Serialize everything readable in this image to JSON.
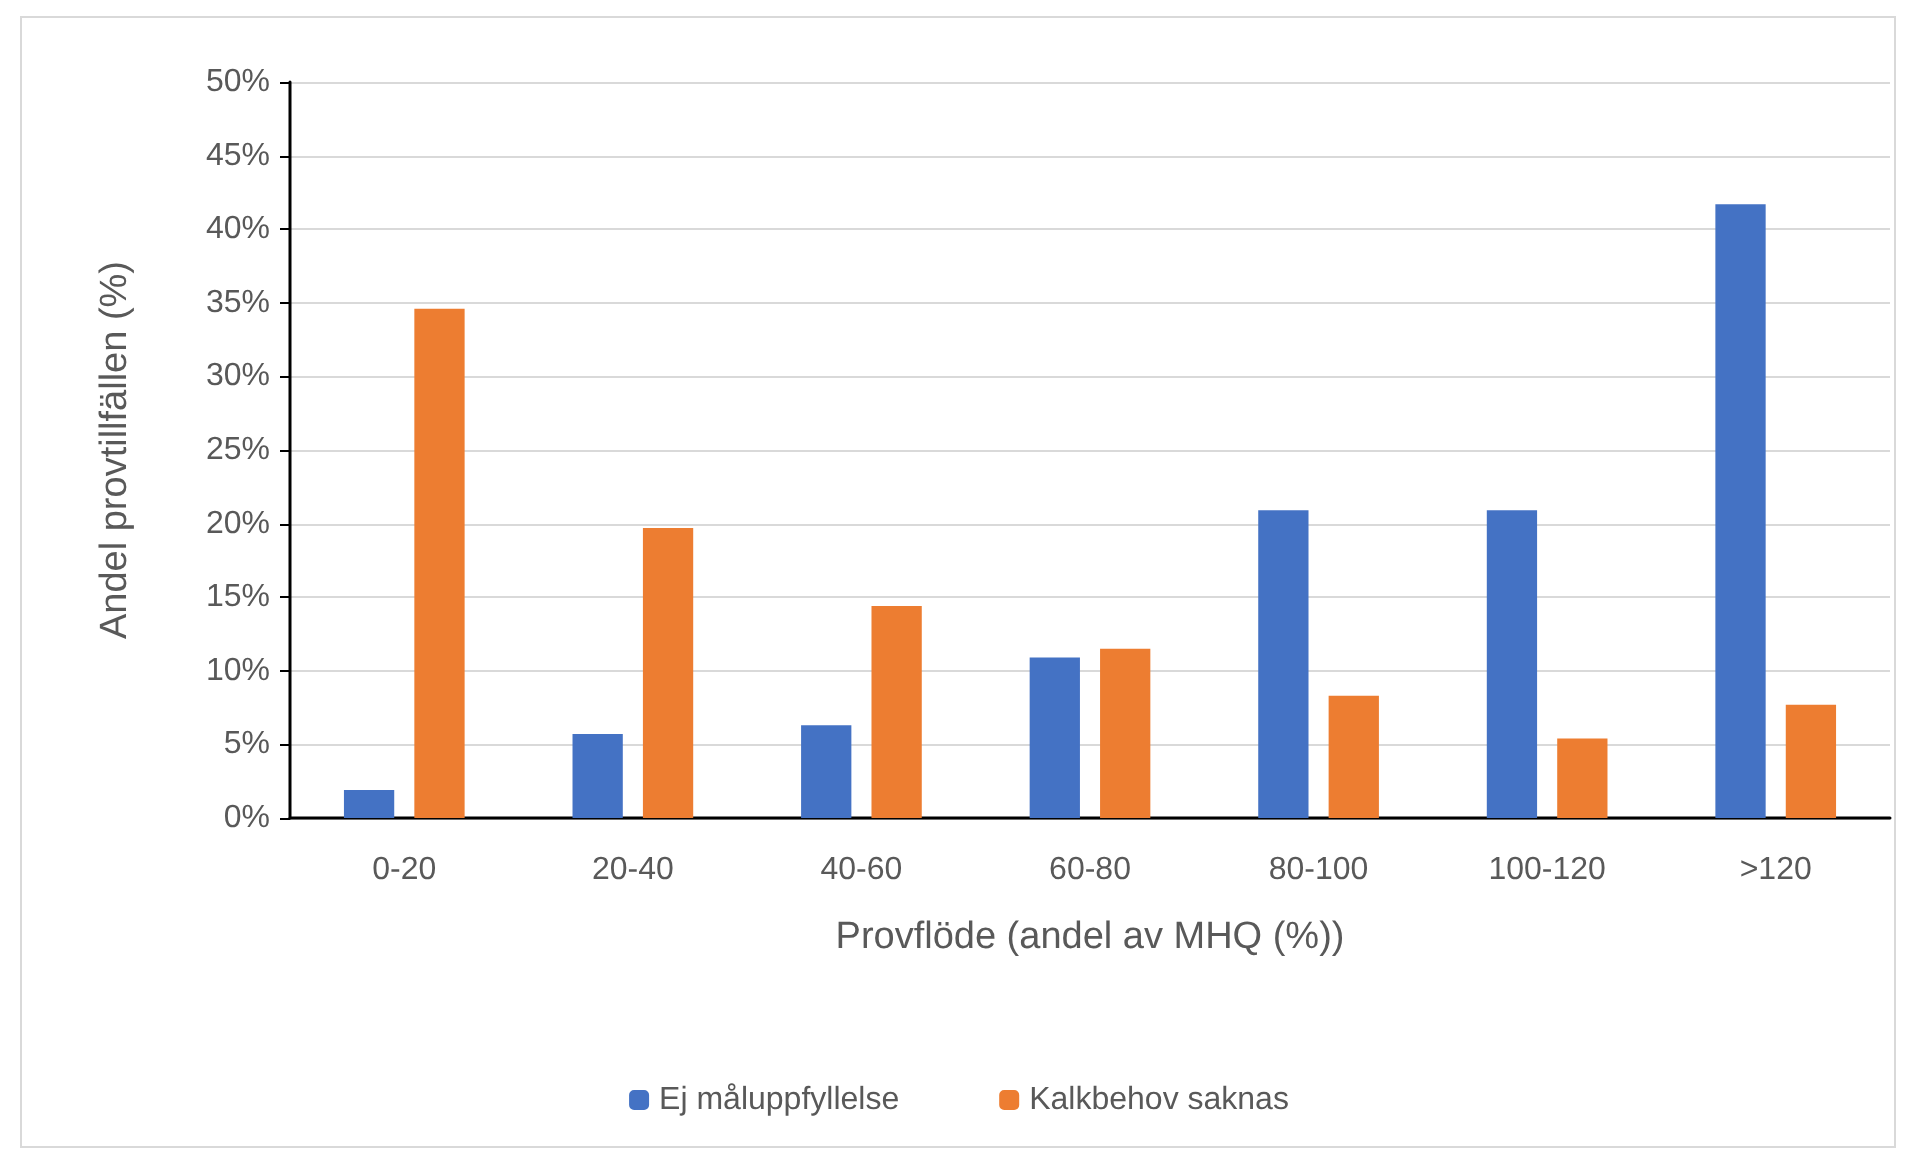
{
  "chart_data": {
    "type": "bar",
    "xlabel": "Provflöde (andel av MHQ (%))",
    "ylabel": "Andel provtillfällen (%)",
    "categories": [
      "0-20",
      "20-40",
      "40-60",
      "60-80",
      "80-100",
      "100-120",
      ">120"
    ],
    "series": [
      {
        "name": "Ej måluppfyllelse",
        "color": "#4472c4",
        "values": [
          1.9,
          5.7,
          6.3,
          10.9,
          20.9,
          20.9,
          41.7
        ]
      },
      {
        "name": "Kalkbehov saknas",
        "color": "#ed7d31",
        "values": [
          34.6,
          19.7,
          14.4,
          11.5,
          8.3,
          5.4,
          7.7
        ]
      }
    ],
    "ylim": [
      0,
      50
    ],
    "yticks": [
      {
        "value": 0,
        "label": "0%"
      },
      {
        "value": 5,
        "label": "5%"
      },
      {
        "value": 10,
        "label": "10%"
      },
      {
        "value": 15,
        "label": "15%"
      },
      {
        "value": 20,
        "label": "20%"
      },
      {
        "value": 25,
        "label": "25%"
      },
      {
        "value": 30,
        "label": "30%"
      },
      {
        "value": 35,
        "label": "35%"
      },
      {
        "value": 40,
        "label": "40%"
      },
      {
        "value": 45,
        "label": "45%"
      },
      {
        "value": 50,
        "label": "50%"
      }
    ],
    "grid": "y",
    "legend": "bottom"
  }
}
